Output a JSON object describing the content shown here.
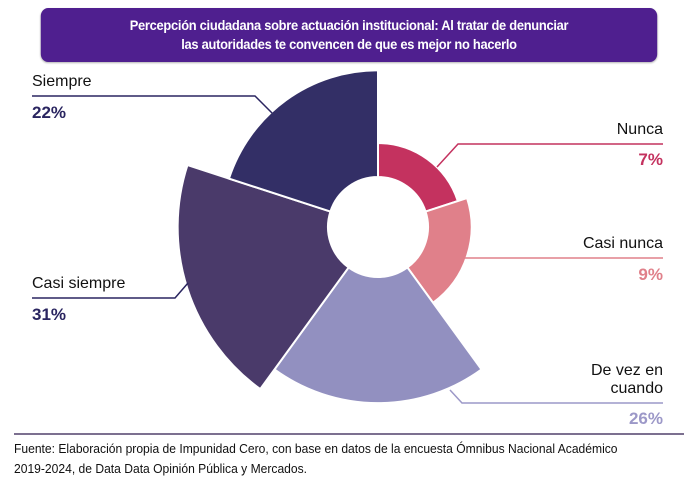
{
  "chart_data": {
    "type": "polar-area",
    "title": [
      "Percepción ciudadana sobre actuación institucional: Al tratar de denunciar",
      "las autoridades te convencen de que es mejor no hacerlo"
    ],
    "categories": [
      "Nunca",
      "Casi nunca",
      "De vez en cuando",
      "Casi siempre",
      "Siempre"
    ],
    "label_lines": [
      [
        "Nunca"
      ],
      [
        "Casi nunca"
      ],
      [
        "De vez en",
        "cuando"
      ],
      [
        "Casi siempre"
      ],
      [
        "Siempre"
      ]
    ],
    "values": [
      7,
      9,
      26,
      31,
      22
    ],
    "value_labels": [
      "7%",
      "9%",
      "26%",
      "31%",
      "22%"
    ],
    "unit": "%",
    "colors": [
      "#c4325f",
      "#e0808a",
      "#9290c0",
      "#4a3a6a",
      "#332f66"
    ],
    "label_colors": [
      "#c4325f",
      "#e0808a",
      "#9c98c8",
      "#2a2560",
      "#2a2560"
    ],
    "grid": false,
    "legend": "none"
  },
  "footer": {
    "source_line1": "Fuente: Elaboración propia de Impunidad Cero, con base en datos de la encuesta Ómnibus Nacional Académico",
    "source_line2": "2019-2024, de Data Data Opinión Pública y Mercados."
  }
}
